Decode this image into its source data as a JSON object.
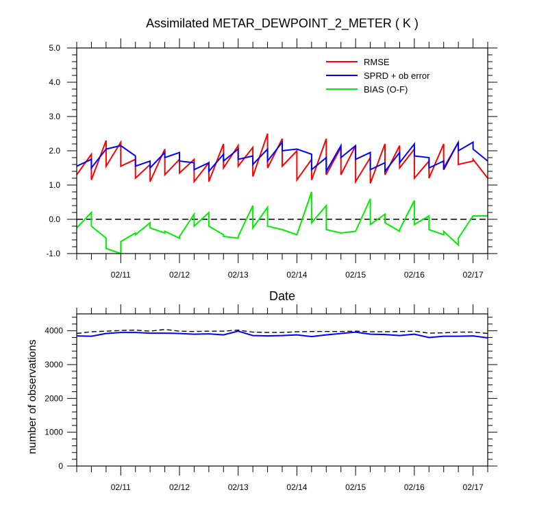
{
  "chart_data": [
    {
      "type": "line",
      "title": "Assimilated METAR_DEWPOINT_2_METER ( K )",
      "xlabel": "Date",
      "ylabel": "",
      "ylim": [
        -1.0,
        5.0
      ],
      "yticks": [
        -1.0,
        0.0,
        1.0,
        2.0,
        3.0,
        4.0,
        5.0
      ],
      "ytick_labels": [
        "-1.0",
        "0.0",
        "1.0",
        "2.0",
        "3.0",
        "4.0",
        "5.0"
      ],
      "xlim": [
        10.25,
        17.25
      ],
      "xticks": [
        11,
        12,
        13,
        14,
        15,
        16,
        17
      ],
      "xtick_labels": [
        "02/11",
        "02/12",
        "02/13",
        "02/14",
        "02/15",
        "02/16",
        "02/17"
      ],
      "reference_line": {
        "y": 0.0,
        "style": "dashed",
        "color": "#000000"
      },
      "legend_position": "top-right",
      "series": [
        {
          "name": "RMSE",
          "color": "#ff0000",
          "x": [
            10.25,
            10.5,
            10.5,
            10.75,
            10.75,
            11.0,
            11.0,
            11.25,
            11.25,
            11.5,
            11.5,
            11.75,
            11.75,
            12.0,
            12.0,
            12.25,
            12.25,
            12.5,
            12.5,
            12.75,
            12.75,
            13.0,
            13.0,
            13.25,
            13.25,
            13.5,
            13.5,
            13.75,
            13.75,
            14.0,
            14.0,
            14.25,
            14.25,
            14.5,
            14.5,
            14.75,
            14.75,
            15.0,
            15.0,
            15.25,
            15.25,
            15.5,
            15.5,
            15.75,
            15.75,
            16.0,
            16.0,
            16.25,
            16.25,
            16.5,
            16.5,
            16.75,
            16.75,
            17.0,
            17.0,
            17.25
          ],
          "y": [
            1.3,
            1.9,
            1.15,
            2.3,
            1.55,
            2.25,
            1.55,
            1.75,
            1.2,
            1.6,
            1.1,
            2.05,
            1.3,
            1.75,
            1.35,
            1.75,
            1.1,
            1.65,
            1.1,
            2.2,
            1.5,
            2.15,
            1.55,
            2.1,
            1.25,
            2.5,
            1.5,
            2.35,
            1.55,
            2.0,
            1.15,
            1.75,
            1.15,
            2.35,
            1.3,
            2.1,
            1.3,
            2.15,
            1.1,
            1.8,
            1.05,
            2.2,
            1.3,
            2.15,
            1.5,
            2.05,
            1.2,
            1.7,
            1.2,
            2.2,
            1.5,
            2.25,
            1.6,
            1.7,
            1.75,
            1.2
          ]
        },
        {
          "name": "SPRD + ob error",
          "color": "#0000ff",
          "x": [
            10.25,
            10.5,
            10.5,
            10.75,
            10.75,
            11.0,
            11.0,
            11.25,
            11.25,
            11.5,
            11.5,
            11.75,
            11.75,
            12.0,
            12.0,
            12.25,
            12.25,
            12.5,
            12.5,
            12.75,
            12.75,
            13.0,
            13.0,
            13.25,
            13.25,
            13.5,
            13.5,
            13.75,
            13.75,
            14.0,
            14.0,
            14.25,
            14.25,
            14.5,
            14.5,
            14.75,
            14.75,
            15.0,
            15.0,
            15.25,
            15.25,
            15.5,
            15.5,
            15.75,
            15.75,
            16.0,
            16.0,
            16.25,
            16.25,
            16.5,
            16.5,
            16.75,
            16.75,
            17.0,
            17.0,
            17.25
          ],
          "y": [
            1.55,
            1.75,
            1.5,
            2.05,
            2.05,
            2.15,
            2.15,
            1.85,
            1.55,
            1.7,
            1.5,
            1.95,
            1.8,
            1.95,
            1.7,
            1.65,
            1.45,
            1.65,
            1.4,
            1.9,
            1.7,
            2.05,
            1.75,
            1.85,
            1.6,
            2.05,
            1.7,
            2.25,
            2.0,
            2.05,
            2.05,
            1.9,
            1.45,
            1.8,
            1.4,
            2.15,
            1.8,
            2.15,
            1.75,
            1.95,
            1.45,
            1.65,
            1.4,
            1.95,
            1.65,
            2.2,
            1.85,
            1.8,
            1.5,
            1.7,
            1.45,
            2.25,
            2.0,
            2.25,
            2.05,
            1.7
          ]
        },
        {
          "name": "BIAS (O-F)",
          "color": "#00ee00",
          "x": [
            10.25,
            10.5,
            10.5,
            10.75,
            10.75,
            11.0,
            11.0,
            11.25,
            11.25,
            11.5,
            11.5,
            11.75,
            11.75,
            12.0,
            12.0,
            12.25,
            12.25,
            12.5,
            12.5,
            12.75,
            12.75,
            13.0,
            13.0,
            13.25,
            13.25,
            13.5,
            13.5,
            13.75,
            13.75,
            14.0,
            14.0,
            14.25,
            14.25,
            14.5,
            14.5,
            14.75,
            14.75,
            15.0,
            15.0,
            15.25,
            15.25,
            15.5,
            15.5,
            15.75,
            15.75,
            16.0,
            16.0,
            16.25,
            16.25,
            16.5,
            16.5,
            16.75,
            16.75,
            17.0,
            17.0,
            17.25
          ],
          "y": [
            -0.25,
            0.2,
            -0.2,
            -0.55,
            -0.85,
            -1.0,
            -0.65,
            -0.4,
            -0.45,
            -0.1,
            -0.25,
            -0.4,
            -0.35,
            -0.55,
            -0.5,
            0.15,
            -0.2,
            0.2,
            -0.2,
            -0.45,
            -0.5,
            -0.55,
            -0.5,
            0.4,
            -0.25,
            0.35,
            -0.2,
            -0.3,
            -0.3,
            -0.45,
            -0.45,
            0.8,
            -0.1,
            0.4,
            -0.3,
            -0.4,
            -0.4,
            -0.35,
            -0.35,
            0.6,
            -0.15,
            0.15,
            -0.1,
            -0.35,
            -0.3,
            0.55,
            -0.15,
            0.1,
            -0.3,
            -0.45,
            -0.35,
            -0.75,
            -0.55,
            0.1,
            0.1,
            0.1
          ]
        }
      ]
    },
    {
      "type": "line",
      "title": "",
      "xlabel": "",
      "ylabel": "number of observations",
      "ylim": [
        0,
        4500
      ],
      "yticks": [
        0,
        1000,
        2000,
        3000,
        4000
      ],
      "ytick_labels": [
        "0",
        "1000",
        "2000",
        "3000",
        "4000"
      ],
      "xlim": [
        10.25,
        17.25
      ],
      "xticks": [
        11,
        12,
        13,
        14,
        15,
        16,
        17
      ],
      "xtick_labels": [
        "02/11",
        "02/12",
        "02/13",
        "02/14",
        "02/15",
        "02/16",
        "02/17"
      ],
      "series": [
        {
          "style": "dashed",
          "color": "#000000",
          "x": [
            10.25,
            10.5,
            10.75,
            11.0,
            11.25,
            11.5,
            11.75,
            12.0,
            12.25,
            12.5,
            12.75,
            13.0,
            13.25,
            13.5,
            13.75,
            14.0,
            14.25,
            14.5,
            14.75,
            15.0,
            15.25,
            15.5,
            15.75,
            16.0,
            16.25,
            16.5,
            16.75,
            17.0,
            17.25
          ],
          "y": [
            3920,
            3970,
            3990,
            4010,
            4020,
            3990,
            4040,
            3990,
            3980,
            3990,
            3990,
            4020,
            3960,
            3950,
            3950,
            3970,
            3980,
            3980,
            3980,
            3990,
            3970,
            3970,
            3980,
            3990,
            3930,
            3940,
            3960,
            3960,
            3920
          ]
        },
        {
          "style": "solid",
          "color": "#0000ff",
          "x": [
            10.25,
            10.5,
            10.75,
            11.0,
            11.25,
            11.5,
            11.75,
            12.0,
            12.25,
            12.5,
            12.75,
            13.0,
            13.25,
            13.5,
            13.75,
            14.0,
            14.25,
            14.5,
            14.75,
            15.0,
            15.25,
            15.5,
            15.75,
            16.0,
            16.25,
            16.5,
            16.75,
            17.0,
            17.25
          ],
          "y": [
            3850,
            3840,
            3920,
            3950,
            3950,
            3930,
            3930,
            3920,
            3900,
            3910,
            3880,
            3990,
            3860,
            3850,
            3860,
            3880,
            3830,
            3880,
            3920,
            3960,
            3900,
            3890,
            3860,
            3900,
            3800,
            3840,
            3840,
            3850,
            3790
          ]
        }
      ]
    }
  ]
}
